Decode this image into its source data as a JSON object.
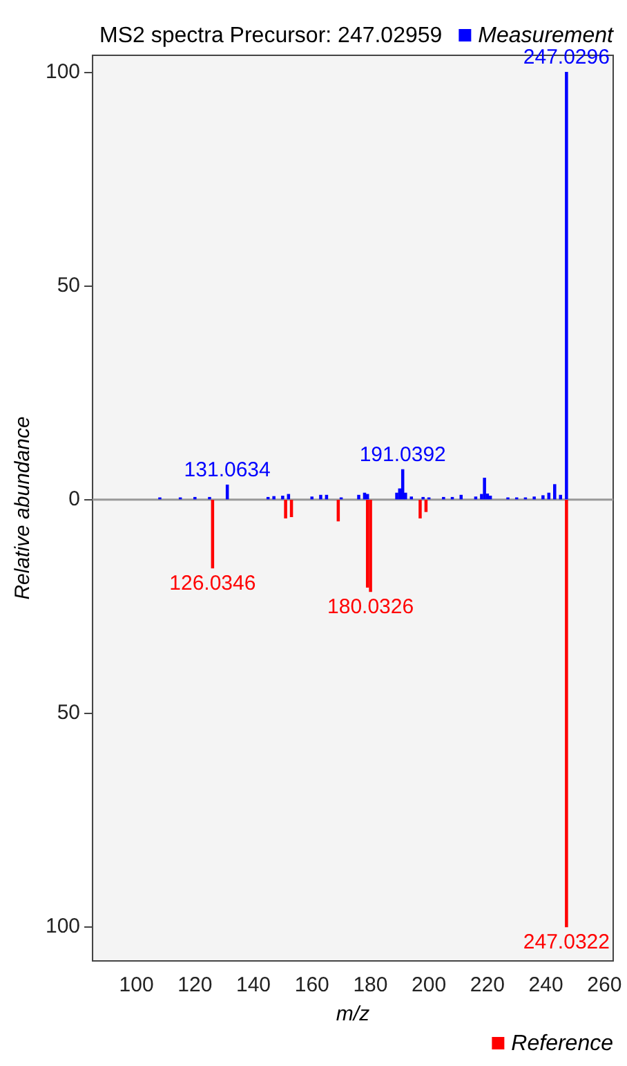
{
  "chart_data": {
    "type": "bar",
    "title": "MS2 spectra Precursor: 247.02959",
    "xlabel": "m/z",
    "ylabel": "Relative abundance",
    "xlim": [
      85,
      263
    ],
    "xticks": [
      100,
      120,
      140,
      160,
      180,
      200,
      220,
      240,
      260
    ],
    "ylim": [
      -108,
      104
    ],
    "yticks": [
      {
        "value": -100,
        "label": "100"
      },
      {
        "value": -50,
        "label": "50"
      },
      0,
      50,
      100
    ],
    "grid": false,
    "legend": "right",
    "series": [
      {
        "name": "Measurement",
        "color": "#0000ff",
        "x": [
          108,
          115,
          120,
          125,
          131.0634,
          145,
          147,
          150,
          152,
          160,
          163,
          165,
          170,
          176,
          178,
          179,
          189,
          190,
          191.0392,
          192,
          194,
          198,
          200,
          205,
          208,
          211,
          216,
          218,
          219,
          220,
          221,
          227,
          230,
          233,
          236,
          239,
          241,
          243,
          245,
          247.0296
        ],
        "values": [
          0.4,
          0.4,
          0.5,
          0.5,
          3.4,
          0.5,
          0.7,
          0.8,
          1.2,
          0.6,
          1,
          1,
          0.4,
          1,
          1.5,
          1.2,
          1.5,
          2.5,
          7,
          1.5,
          0.6,
          0.5,
          0.4,
          0.5,
          0.5,
          1,
          0.6,
          1.2,
          5,
          1.3,
          0.8,
          0.4,
          0.4,
          0.4,
          0.6,
          0.9,
          1.5,
          3.5,
          1,
          100
        ]
      },
      {
        "name": "Reference",
        "color": "#ff0000",
        "x": [
          126.0346,
          151,
          153,
          169,
          179,
          180.0326,
          197,
          199,
          247.0322
        ],
        "values": [
          -16,
          -4.3,
          -4,
          -5,
          -20.5,
          -21.5,
          -4.3,
          -2.8,
          -100
        ]
      }
    ],
    "ref_lines": [
      {
        "axis": "y",
        "value": 0,
        "color": "#999999"
      }
    ],
    "annotations": [
      {
        "text": "131.0634",
        "x": 131.0634,
        "y": 3.4
      },
      {
        "text": "191.0392",
        "x": 191.0392,
        "y": 7
      },
      {
        "text": "247.0296",
        "x": 247.0296,
        "y": 100
      },
      {
        "text": "126.0346",
        "x": 126.0346,
        "y": -16
      },
      {
        "text": "180.0326",
        "x": 180.0326,
        "y": -21.5
      },
      {
        "text": "247.0322",
        "x": 247.0322,
        "y": -100
      }
    ]
  }
}
